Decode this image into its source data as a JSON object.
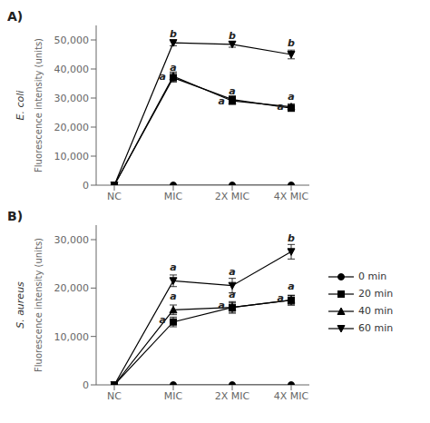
{
  "chart_data": [
    {
      "type": "line",
      "title": "A)",
      "subtitle": "E. coli",
      "y_label": "Fluorescence intensity (units)",
      "categories": [
        "NC",
        "MIC",
        "2X MIC",
        "4X MIC"
      ],
      "color": "#000000",
      "grid": false,
      "series": [
        {
          "name": "0 min",
          "marker": "circle",
          "values": [
            0,
            0,
            0,
            0
          ],
          "errors": [
            0,
            0,
            0,
            0
          ]
        },
        {
          "name": "20 min",
          "marker": "square",
          "values": [
            0,
            37000,
            29500,
            26500
          ],
          "errors": [
            0,
            1500,
            1200,
            1000
          ]
        },
        {
          "name": "40 min",
          "marker": "triangle-up",
          "values": [
            0,
            37500,
            29000,
            27000
          ],
          "errors": [
            0,
            1500,
            1200,
            1000
          ]
        },
        {
          "name": "60 min",
          "marker": "triangle-down",
          "values": [
            0,
            49000,
            48500,
            45000
          ],
          "errors": [
            0,
            1000,
            1000,
            1500
          ]
        }
      ],
      "annotations": [
        {
          "text": "b",
          "x": "MIC",
          "dx": 0,
          "y": 50500
        },
        {
          "text": "a",
          "x": "MIC",
          "dx": 0,
          "y": 39000
        },
        {
          "text": "a",
          "x": "MIC",
          "dx": -0.18,
          "y": 36000
        },
        {
          "text": "b",
          "x": "2X MIC",
          "dx": 0,
          "y": 50000
        },
        {
          "text": "a",
          "x": "2X MIC",
          "dx": 0,
          "y": 31000
        },
        {
          "text": "a",
          "x": "2X MIC",
          "dx": -0.18,
          "y": 27500
        },
        {
          "text": "b",
          "x": "4X MIC",
          "dx": 0,
          "y": 47500
        },
        {
          "text": "a",
          "x": "4X MIC",
          "dx": 0,
          "y": 29000
        },
        {
          "text": "a",
          "x": "4X MIC",
          "dx": -0.18,
          "y": 25500
        }
      ],
      "ylim": [
        0,
        55000
      ],
      "yticks": [
        0,
        {
          "value": 10000,
          "label": "10,000"
        },
        {
          "value": 20000,
          "label": "20,000"
        },
        {
          "value": 30000,
          "label": "30,000"
        },
        {
          "value": 40000,
          "label": "40,000"
        },
        {
          "value": 50000,
          "label": "50,000"
        }
      ]
    },
    {
      "type": "line",
      "title": "B)",
      "subtitle": "S. aureus",
      "y_label": "Fluorescence intensity (units)",
      "categories": [
        "NC",
        "MIC",
        "2X MIC",
        "4X MIC"
      ],
      "color": "#000000",
      "grid": false,
      "legend": "right",
      "series": [
        {
          "name": "0 min",
          "marker": "circle",
          "values": [
            0,
            0,
            0,
            0
          ],
          "errors": [
            0,
            0,
            0,
            0
          ]
        },
        {
          "name": "20 min",
          "marker": "square",
          "values": [
            0,
            13000,
            16000,
            17500
          ],
          "errors": [
            0,
            1000,
            1000,
            1000
          ]
        },
        {
          "name": "40 min",
          "marker": "triangle-up",
          "values": [
            0,
            15500,
            16000,
            17500
          ],
          "errors": [
            0,
            1000,
            1200,
            1000
          ]
        },
        {
          "name": "60 min",
          "marker": "triangle-down",
          "values": [
            0,
            21500,
            20500,
            27500
          ],
          "errors": [
            0,
            1200,
            1500,
            1500
          ]
        }
      ],
      "annotations": [
        {
          "text": "a",
          "x": "MIC",
          "dx": 0,
          "y": 23500
        },
        {
          "text": "a",
          "x": "MIC",
          "dx": 0,
          "y": 17500
        },
        {
          "text": "a",
          "x": "MIC",
          "dx": -0.18,
          "y": 12500
        },
        {
          "text": "a",
          "x": "2X MIC",
          "dx": 0,
          "y": 22500
        },
        {
          "text": "a",
          "x": "2X MIC",
          "dx": 0,
          "y": 17800
        },
        {
          "text": "a",
          "x": "2X MIC",
          "dx": -0.18,
          "y": 15500
        },
        {
          "text": "b",
          "x": "4X MIC",
          "dx": 0,
          "y": 29500
        },
        {
          "text": "a",
          "x": "4X MIC",
          "dx": 0,
          "y": 19500
        },
        {
          "text": "a",
          "x": "4X MIC",
          "dx": -0.18,
          "y": 17000
        }
      ],
      "ylim": [
        0,
        33000
      ],
      "yticks": [
        0,
        {
          "value": 10000,
          "label": "10,000"
        },
        {
          "value": 20000,
          "label": "20,000"
        },
        {
          "value": 30000,
          "label": "30,000"
        }
      ]
    }
  ]
}
